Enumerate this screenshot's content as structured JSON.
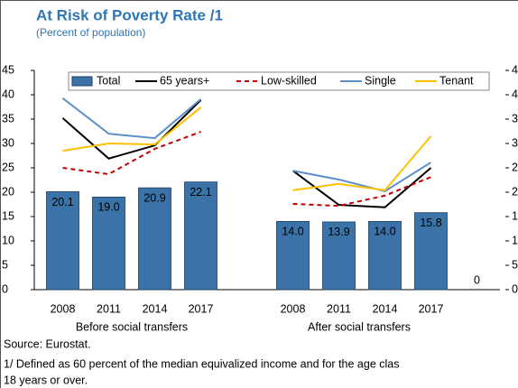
{
  "chart_data": {
    "type": "bar",
    "title": "At Risk of Poverty Rate /1",
    "subtitle": "(Percent of population)",
    "categories": [
      "2008",
      "2011",
      "2014",
      "2017",
      null,
      "2008",
      "2011",
      "2014",
      "2017",
      null
    ],
    "group_labels": [
      "Before social transfers",
      "After social transfers"
    ],
    "series": [
      {
        "name": "Total",
        "type": "bar",
        "color": "#3b73a8",
        "values": [
          20.1,
          19.0,
          20.9,
          22.1,
          null,
          14.0,
          13.9,
          14.0,
          15.8,
          0
        ],
        "value_labels": [
          "20.1",
          "19.0",
          "20.9",
          "22.1",
          null,
          "14.0",
          "13.9",
          "14.0",
          "15.8",
          "0"
        ]
      },
      {
        "name": "65 years+",
        "type": "line",
        "color": "#000000",
        "values": [
          35.2,
          26.9,
          29.6,
          38.9,
          null,
          24.4,
          17.4,
          16.9,
          25.0,
          null
        ]
      },
      {
        "name": "Low-skilled",
        "type": "line",
        "dashed": true,
        "color": "#c00000",
        "values": [
          25.0,
          23.7,
          28.9,
          32.4,
          null,
          17.6,
          17.2,
          19.3,
          23.1,
          null
        ]
      },
      {
        "name": "Single",
        "type": "line",
        "color": "#5b8fc9",
        "values": [
          39.3,
          32.0,
          31.1,
          39.1,
          null,
          24.4,
          22.6,
          20.2,
          26.1,
          null
        ]
      },
      {
        "name": "Tenant",
        "type": "line",
        "color": "#ffc000",
        "values": [
          28.5,
          30.0,
          29.8,
          37.4,
          null,
          20.4,
          21.7,
          20.4,
          31.5,
          null
        ]
      }
    ],
    "ylim": [
      0,
      45
    ],
    "yticks": [
      0,
      5,
      10,
      15,
      20,
      25,
      30,
      35,
      40,
      45
    ],
    "y2lim": [
      0,
      45
    ],
    "y2ticks": [
      0,
      5,
      10,
      15,
      20,
      25,
      30,
      35,
      40,
      45
    ],
    "source": "Source: Eurostat.",
    "footnote": [
      "1/ Defined as 60 percent of the median equivalized income and for the age clas",
      "18 years or over."
    ]
  }
}
